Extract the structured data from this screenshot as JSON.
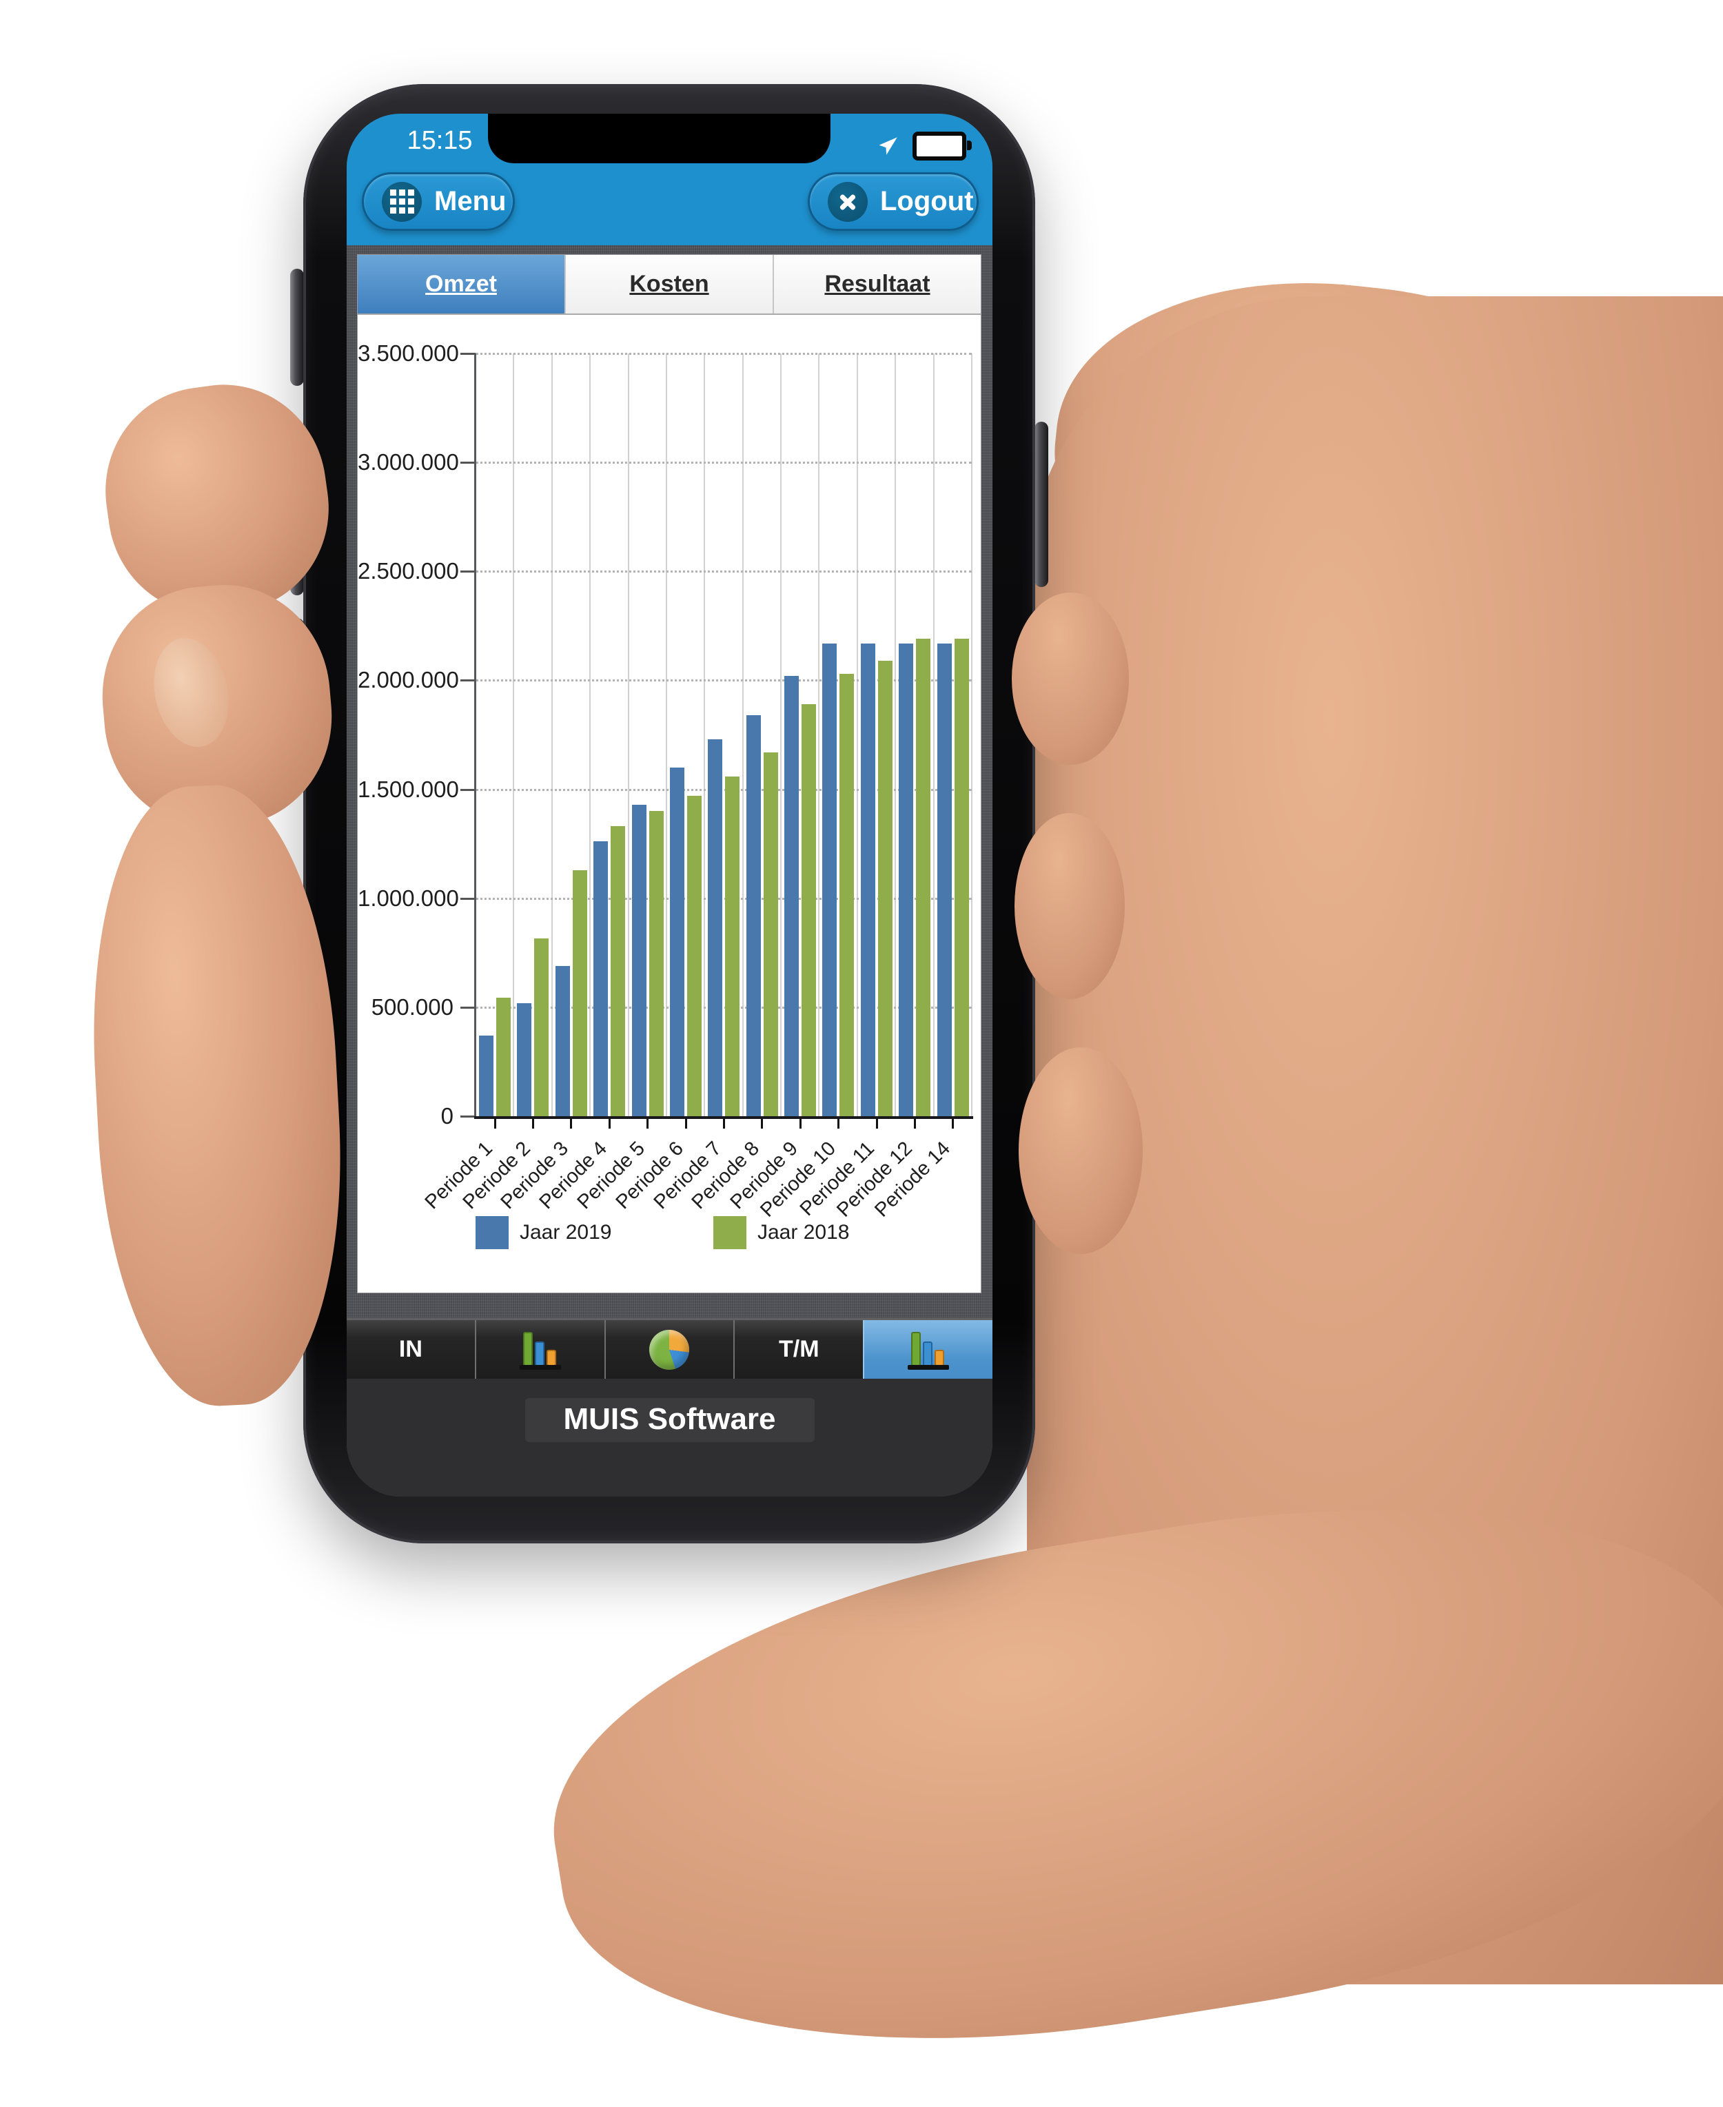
{
  "device": {
    "status_bar": {
      "time": "15:15",
      "icons": [
        "navigation-arrow-icon",
        "battery-icon"
      ]
    },
    "header": {
      "menu_label": "Menu",
      "logout_label": "Logout",
      "menu_icon": "menu-grid-icon",
      "logout_icon": "close-icon"
    },
    "tabs": [
      {
        "label": "Omzet",
        "active": true
      },
      {
        "label": "Kosten",
        "active": false
      },
      {
        "label": "Resultaat",
        "active": false
      }
    ],
    "toolbar": {
      "items": [
        {
          "kind": "text",
          "label": "IN"
        },
        {
          "kind": "icon",
          "icon": "bar-chart-icon"
        },
        {
          "kind": "icon",
          "icon": "pie-chart-icon"
        },
        {
          "kind": "text",
          "label": "T/M"
        },
        {
          "kind": "icon",
          "icon": "bar-chart-icon",
          "selected": true
        }
      ]
    },
    "footer_brand": "MUIS Software"
  },
  "chart_data": {
    "type": "bar",
    "title": "",
    "xlabel": "",
    "ylabel": "",
    "categories": [
      "Periode 1",
      "Periode 2",
      "Periode 3",
      "Periode 4",
      "Periode 5",
      "Periode 6",
      "Periode 7",
      "Periode 8",
      "Periode 9",
      "Periode 10",
      "Periode 11",
      "Periode 12",
      "Periode 14"
    ],
    "series": [
      {
        "name": "Jaar 2019",
        "color": "#4878AC",
        "values": [
          370000,
          520000,
          690000,
          1260000,
          1430000,
          1600000,
          1730000,
          1840000,
          2020000,
          2170000,
          2170000,
          2170000,
          2170000
        ]
      },
      {
        "name": "Jaar 2018",
        "color": "#8FAE4B",
        "values": [
          545000,
          815000,
          1130000,
          1330000,
          1400000,
          1470000,
          1560000,
          1670000,
          1890000,
          2030000,
          2090000,
          2190000,
          2190000
        ]
      }
    ],
    "ylim": [
      0,
      3500000
    ],
    "ytick_step": 500000,
    "ytick_labels": [
      "0",
      "500.000",
      "1.000.000",
      "1.500.000",
      "2.000.000",
      "2.500.000",
      "3.000.000",
      "3.500.000"
    ],
    "grid": true,
    "legend_position": "bottom"
  },
  "colors": {
    "header_blue": "#1E90CE",
    "active_tab_top": "#6BA6D8",
    "active_tab_bottom": "#3F7FBE",
    "selected_tool_blue": "#4D94CD",
    "bar_2019": "#4878AC",
    "bar_2018": "#8FAE4B",
    "toolbar_bg": "#262626",
    "screen_texture": "#54545B"
  }
}
